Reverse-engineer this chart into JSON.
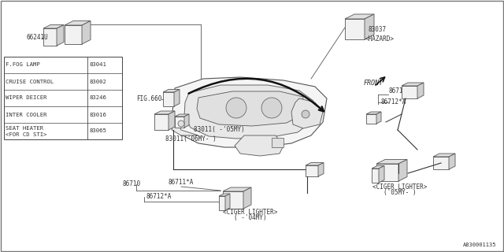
{
  "bg_color": "#ffffff",
  "diagram_number": "A830001135",
  "table_entries": [
    {
      "label": "F.FOG LAMP",
      "number": "83041"
    },
    {
      "label": "CRUISE CONTROL",
      "number": "83002"
    },
    {
      "label": "WIPER DEICER",
      "number": "83246"
    },
    {
      "label": "INTER COOLER",
      "number": "83016"
    },
    {
      "label": "SEAT HEATER\n<FOR CD STI>",
      "number": "83065"
    }
  ],
  "line_color": "#555555",
  "text_color": "#333333",
  "font_size": 5.5
}
